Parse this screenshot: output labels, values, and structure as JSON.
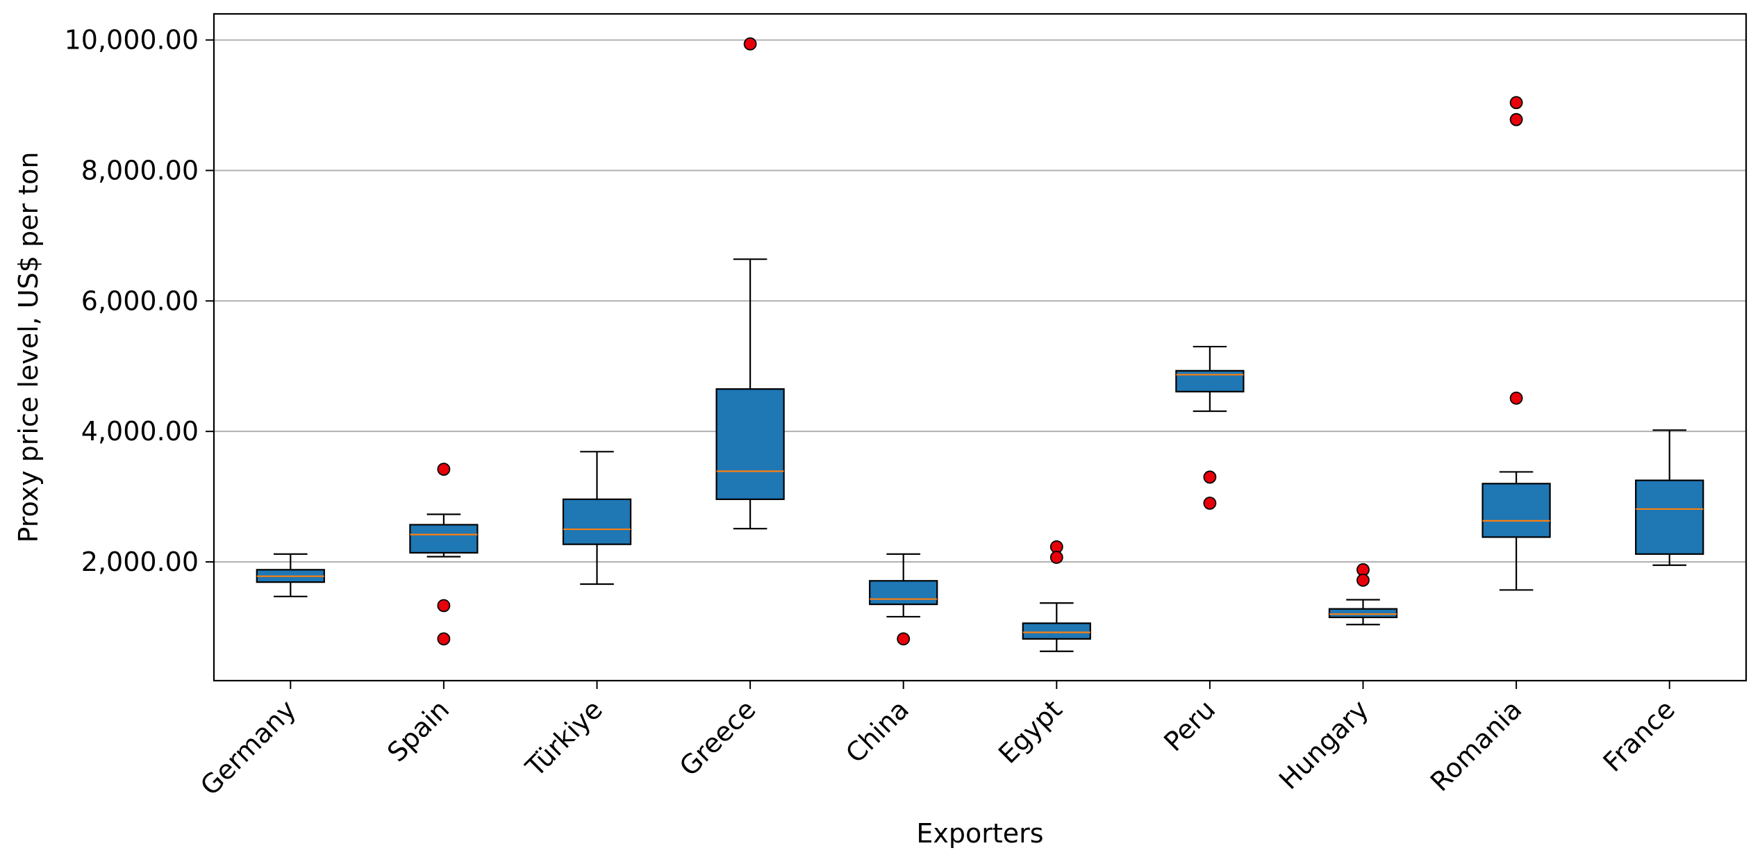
{
  "chart_data": {
    "type": "boxplot",
    "xlabel": "Exporters",
    "ylabel": "Proxy price level, US$ per ton",
    "ylim": [
      180,
      10400
    ],
    "yticks": [
      2000,
      4000,
      6000,
      8000,
      10000
    ],
    "ytick_labels": [
      "2,000.00",
      "4,000.00",
      "6,000.00",
      "8,000.00",
      "10,000.00"
    ],
    "grid": "horizontal",
    "colors": {
      "box_fill": "#1f77b4",
      "median": "#ff7f0e",
      "outlier_fill": "#e8000b",
      "grid": "#b0b0b0"
    },
    "categories": [
      "Germany",
      "Spain",
      "Türkiye",
      "Greece",
      "China",
      "Egypt",
      "Peru",
      "Hungary",
      "Romania",
      "France"
    ],
    "boxes": [
      {
        "whislo": 1470,
        "q1": 1690,
        "med": 1780,
        "q3": 1880,
        "whishi": 2120,
        "fliers": []
      },
      {
        "whislo": 2080,
        "q1": 2140,
        "med": 2420,
        "q3": 2570,
        "whishi": 2730,
        "fliers": [
          3420,
          1330,
          820
        ]
      },
      {
        "whislo": 1660,
        "q1": 2270,
        "med": 2500,
        "q3": 2960,
        "whishi": 3690,
        "fliers": []
      },
      {
        "whislo": 2510,
        "q1": 2960,
        "med": 3390,
        "q3": 4650,
        "whishi": 6640,
        "fliers": [
          9940
        ]
      },
      {
        "whislo": 1160,
        "q1": 1350,
        "med": 1430,
        "q3": 1710,
        "whishi": 2120,
        "fliers": [
          820
        ]
      },
      {
        "whislo": 630,
        "q1": 820,
        "med": 920,
        "q3": 1060,
        "whishi": 1370,
        "fliers": [
          2230,
          2070
        ]
      },
      {
        "whislo": 4310,
        "q1": 4610,
        "med": 4870,
        "q3": 4930,
        "whishi": 5300,
        "fliers": [
          3300,
          2900
        ]
      },
      {
        "whislo": 1040,
        "q1": 1150,
        "med": 1200,
        "q3": 1280,
        "whishi": 1420,
        "fliers": [
          1880,
          1720
        ]
      },
      {
        "whislo": 1570,
        "q1": 2380,
        "med": 2630,
        "q3": 3200,
        "whishi": 3380,
        "fliers": [
          9040,
          8780,
          4510
        ]
      },
      {
        "whislo": 1950,
        "q1": 2120,
        "med": 2810,
        "q3": 3250,
        "whishi": 4020,
        "fliers": []
      }
    ]
  }
}
